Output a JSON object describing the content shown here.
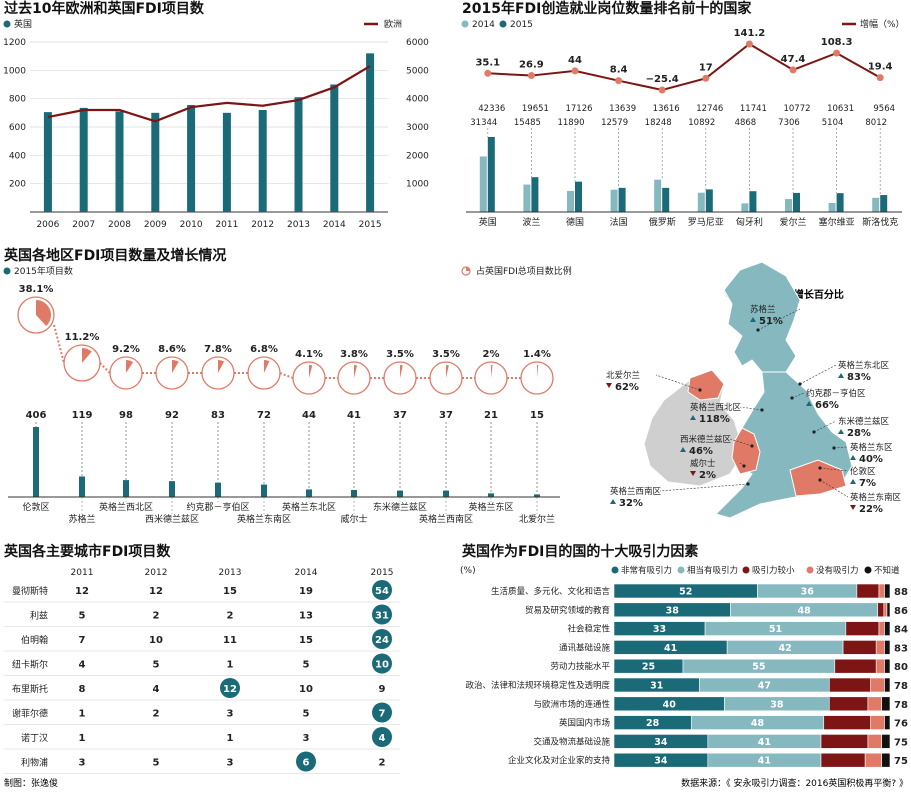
{
  "footer": {
    "author": "制图：张逸俊",
    "source": "数据来源：《 安永吸引力调查：2016英国积极再平衡? 》"
  },
  "colors": {
    "teal": "#1a6a78",
    "tealLight": "#86b8c0",
    "darkred": "#7d1515",
    "salmon": "#e07a66",
    "gray": "#bbbbbb",
    "black": "#111111"
  },
  "chart_data": [
    {
      "id": "fdi_trend",
      "type": "bar+line",
      "title": "过去10年欧洲和英国FDI项目数",
      "legend": [
        "英国",
        "欧洲"
      ],
      "categories": [
        "2006",
        "2007",
        "2008",
        "2009",
        "2010",
        "2011",
        "2012",
        "2013",
        "2014",
        "2015"
      ],
      "series": [
        {
          "name": "英国",
          "axis": "left",
          "values": [
            705,
            735,
            710,
            700,
            755,
            700,
            720,
            810,
            900,
            1120
          ]
        },
        {
          "name": "欧洲",
          "axis": "right",
          "values": [
            3350,
            3600,
            3600,
            3200,
            3700,
            3850,
            3750,
            3950,
            4400,
            5150
          ]
        }
      ],
      "yleft": {
        "ticks": [
          "200",
          "400",
          "600",
          "800",
          "1000",
          "1200"
        ],
        "range": [
          0,
          1200
        ]
      },
      "yright": {
        "ticks": [
          "1000",
          "2000",
          "3000",
          "4000",
          "5000",
          "6000"
        ],
        "range": [
          0,
          6000
        ]
      }
    },
    {
      "id": "jobs_top10",
      "type": "bar+line",
      "title": "2015年FDI创造就业岗位数量排名前十的国家",
      "legend": [
        "2014",
        "2015",
        "增幅（%）"
      ],
      "categories": [
        "英国",
        "波兰",
        "德国",
        "法国",
        "俄罗斯",
        "罗马尼亚",
        "匈牙利",
        "爱尔兰",
        "塞尔维亚",
        "斯洛伐克"
      ],
      "series": [
        {
          "name": "2014",
          "values": [
            31344,
            15485,
            11890,
            12579,
            18248,
            10892,
            4868,
            7306,
            5104,
            8012
          ],
          "labels": [
            "31344",
            "15485",
            "11890",
            "12579",
            "18248",
            "10892",
            "4868",
            "7306",
            "5104",
            "8012"
          ]
        },
        {
          "name": "2015",
          "values": [
            42336,
            19651,
            17126,
            13639,
            13616,
            12746,
            11741,
            10772,
            10631,
            9564
          ],
          "labels": [
            "42336",
            "19651",
            "17126",
            "13639",
            "13616",
            "12746",
            "11741",
            "10772",
            "10631",
            "9564"
          ]
        },
        {
          "name": "增幅（%）",
          "values": [
            35.1,
            26.9,
            44,
            8.4,
            -25.4,
            17,
            141.2,
            47.4,
            108.3,
            19.4
          ],
          "labels": [
            "35.1",
            "26.9",
            "44",
            "8.4",
            "−25.4",
            "17",
            "141.2",
            "47.4",
            "108.3",
            "19.4"
          ]
        }
      ]
    },
    {
      "id": "regions",
      "type": "bar",
      "title": "英国各地区FDI项目数量及增长情况",
      "legend": [
        "2015年项目数",
        "占英国FDI总项目数比例"
      ],
      "categories": [
        "伦敦区",
        "苏格兰",
        "英格兰西北区",
        "西米德兰兹区",
        "约克郡－亨伯区",
        "英格兰东南区",
        "英格兰东北区",
        "威尔士",
        "东米德兰兹区",
        "英格兰西南区",
        "英格兰东区",
        "北爱尔兰"
      ],
      "values": [
        406,
        119,
        98,
        92,
        83,
        72,
        44,
        41,
        37,
        37,
        21,
        15
      ],
      "value_labels": [
        "406",
        "119",
        "98",
        "92",
        "83",
        "72",
        "44",
        "41",
        "37",
        "37",
        "21",
        "15"
      ],
      "share": [
        38.1,
        11.2,
        9.2,
        8.6,
        7.8,
        6.8,
        4.1,
        3.8,
        3.5,
        3.5,
        2,
        1.4
      ],
      "share_labels": [
        "38.1%",
        "11.2%",
        "9.2%",
        "8.6%",
        "7.8%",
        "6.8%",
        "4.1%",
        "3.8%",
        "3.5%",
        "3.5%",
        "2%",
        "1.4%"
      ]
    },
    {
      "id": "growth_map",
      "type": "map",
      "title": "与2014年相比增长百分比",
      "regions": [
        {
          "name": "苏格兰",
          "value": "51%",
          "dir": "up"
        },
        {
          "name": "英格兰东北区",
          "value": "83%",
          "dir": "up"
        },
        {
          "name": "约克郡－亨伯区",
          "value": "66%",
          "dir": "up"
        },
        {
          "name": "东米德兰兹区",
          "value": "28%",
          "dir": "up"
        },
        {
          "name": "英格兰东区",
          "value": "40%",
          "dir": "up"
        },
        {
          "name": "伦敦区",
          "value": "7%",
          "dir": "up"
        },
        {
          "name": "英格兰东南区",
          "value": "22%",
          "dir": "down"
        },
        {
          "name": "英格兰西南区",
          "value": "32%",
          "dir": "up"
        },
        {
          "name": "威尔士",
          "value": "2%",
          "dir": "down"
        },
        {
          "name": "西米德兰兹区",
          "value": "46%",
          "dir": "up"
        },
        {
          "name": "英格兰西北区",
          "value": "118%",
          "dir": "up"
        },
        {
          "name": "北爱尔兰",
          "value": "62%",
          "dir": "down"
        }
      ]
    },
    {
      "id": "cities",
      "type": "table",
      "title": "英国各主要城市FDI项目数",
      "columns": [
        "2011",
        "2012",
        "2013",
        "2014",
        "2015"
      ],
      "rows": [
        {
          "city": "曼彻斯特",
          "values": [
            "12",
            "12",
            "15",
            "19",
            "54"
          ],
          "highlight": 4
        },
        {
          "city": "利兹",
          "values": [
            "5",
            "2",
            "2",
            "13",
            "31"
          ],
          "highlight": 4
        },
        {
          "city": "伯明翰",
          "values": [
            "7",
            "10",
            "11",
            "15",
            "24"
          ],
          "highlight": 4
        },
        {
          "city": "纽卡斯尔",
          "values": [
            "4",
            "5",
            "1",
            "5",
            "10"
          ],
          "highlight": 4
        },
        {
          "city": "布里斯托",
          "values": [
            "8",
            "4",
            "12",
            "10",
            "9"
          ],
          "highlight": 2
        },
        {
          "city": "谢菲尔德",
          "values": [
            "1",
            "2",
            "3",
            "5",
            "7"
          ],
          "highlight": 4
        },
        {
          "city": "诺丁汉",
          "values": [
            "1",
            "",
            "1",
            "3",
            "4"
          ],
          "highlight": 4
        },
        {
          "city": "利物浦",
          "values": [
            "3",
            "5",
            "3",
            "6",
            "2"
          ],
          "highlight": 3
        }
      ]
    },
    {
      "id": "attractiveness",
      "type": "stacked_bar",
      "title": "英国作为FDI目的国的十大吸引力因素",
      "unit": "(%)",
      "legend": [
        "非常有吸引力",
        "相当有吸引力",
        "吸引力较小",
        "没有吸引力",
        "不知道"
      ],
      "rows": [
        {
          "label": "生活质量、多元化、文化和语言",
          "segs": [
            52,
            36,
            8,
            2,
            2
          ],
          "total": "88",
          "show": [
            "52",
            "36"
          ]
        },
        {
          "label": "贸易及研究领域的教育",
          "segs": [
            38,
            48,
            2,
            1,
            1
          ],
          "total": "86",
          "show": [
            "38",
            "48"
          ]
        },
        {
          "label": "社会稳定性",
          "segs": [
            33,
            51,
            12,
            2,
            2
          ],
          "total": "84",
          "show": [
            "33",
            "51"
          ]
        },
        {
          "label": "通讯基础设施",
          "segs": [
            41,
            42,
            12,
            3,
            2
          ],
          "total": "83",
          "show": [
            "41",
            "42"
          ]
        },
        {
          "label": "劳动力技能水平",
          "segs": [
            25,
            55,
            15,
            3,
            2
          ],
          "total": "80",
          "show": [
            "25",
            "55"
          ]
        },
        {
          "label": "政治、法律和法规环境稳定性及透明度",
          "segs": [
            31,
            47,
            15,
            5,
            2
          ],
          "total": "78",
          "show": [
            "31",
            "47"
          ]
        },
        {
          "label": "与欧洲市场的连通性",
          "segs": [
            40,
            38,
            14,
            5,
            3
          ],
          "total": "78",
          "show": [
            "40",
            "38"
          ]
        },
        {
          "label": "英国国内市场",
          "segs": [
            28,
            48,
            17,
            5,
            2
          ],
          "total": "76",
          "show": [
            "28",
            "48"
          ]
        },
        {
          "label": "交通及物流基础设施",
          "segs": [
            34,
            41,
            17,
            5,
            3
          ],
          "total": "75",
          "show": [
            "34",
            "41"
          ]
        },
        {
          "label": "企业文化及对企业家的支持",
          "segs": [
            34,
            41,
            16,
            6,
            3
          ],
          "total": "75",
          "show": [
            "34",
            "41"
          ]
        }
      ]
    }
  ]
}
